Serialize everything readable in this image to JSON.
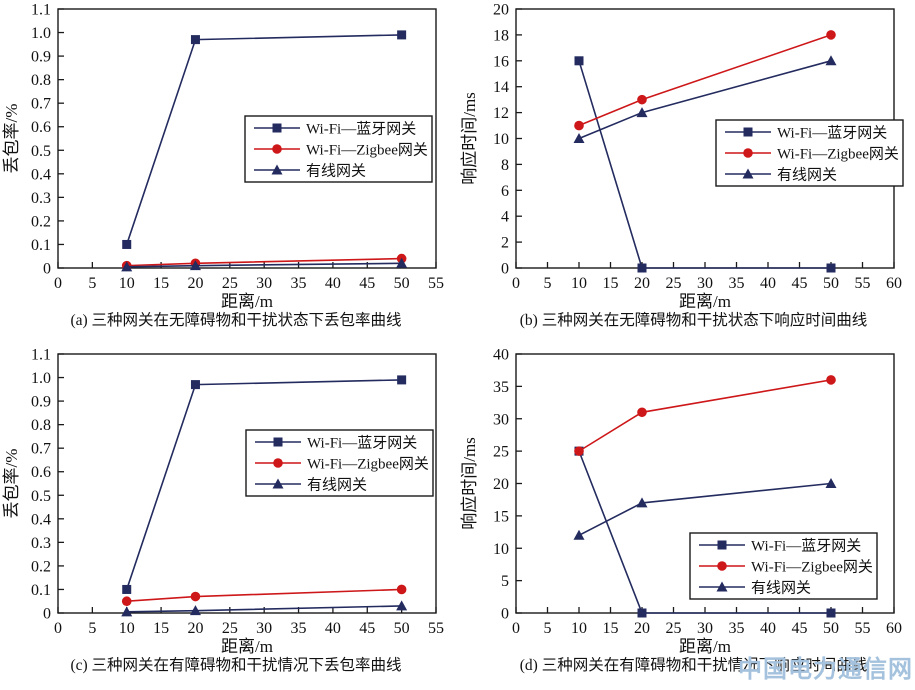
{
  "watermark": {
    "text": "中国电力通信网",
    "color": "#a4c2dd"
  },
  "chart_data": [
    {
      "id": "a",
      "type": "line",
      "caption": "(a) 三种网关在无障碍物和干扰状态下丢包率曲线",
      "xlabel": "距离/m",
      "ylabel": "丢包率/%",
      "xlim": [
        0,
        55
      ],
      "xstep": 5,
      "ylim": [
        0,
        1.1
      ],
      "ystep": 0.1,
      "grid": false,
      "legend_pos": {
        "x": 245,
        "y": 116
      },
      "series": [
        {
          "name": "Wi-Fi—蓝牙网关",
          "marker": "square",
          "color": "#232b5f",
          "points": [
            [
              10,
              0.1
            ],
            [
              20,
              0.97
            ],
            [
              50,
              0.99
            ]
          ]
        },
        {
          "name": "Wi-Fi—Zigbee网关",
          "marker": "circle",
          "color": "#cd1719",
          "points": [
            [
              10,
              0.01
            ],
            [
              20,
              0.02
            ],
            [
              50,
              0.04
            ]
          ]
        },
        {
          "name": "有线网关",
          "marker": "triangle",
          "color": "#232b5f",
          "points": [
            [
              10,
              0.005
            ],
            [
              20,
              0.01
            ],
            [
              50,
              0.02
            ]
          ]
        }
      ]
    },
    {
      "id": "b",
      "type": "line",
      "caption": "(b) 三种网关在无障碍物和干扰状态下响应时间曲线",
      "xlabel": "距离/m",
      "ylabel": "响应时间/ms",
      "xlim": [
        0,
        60
      ],
      "xstep": 5,
      "ylim": [
        0,
        20
      ],
      "ystep": 2,
      "grid": false,
      "legend_pos": {
        "x": 258,
        "y": 120
      },
      "series": [
        {
          "name": "Wi-Fi—蓝牙网关",
          "marker": "square",
          "color": "#232b5f",
          "points": [
            [
              10,
              16
            ],
            [
              20,
              0
            ],
            [
              50,
              0
            ]
          ]
        },
        {
          "name": "Wi-Fi—Zigbee网关",
          "marker": "circle",
          "color": "#cd1719",
          "points": [
            [
              10,
              11
            ],
            [
              20,
              13
            ],
            [
              50,
              18
            ]
          ]
        },
        {
          "name": "有线网关",
          "marker": "triangle",
          "color": "#232b5f",
          "points": [
            [
              10,
              10
            ],
            [
              20,
              12
            ],
            [
              50,
              16
            ]
          ]
        }
      ]
    },
    {
      "id": "c",
      "type": "line",
      "caption": "(c) 三种网关在有障碍物和干扰情况下丢包率曲线",
      "xlabel": "距离/m",
      "ylabel": "丢包率/%",
      "xlim": [
        0,
        55
      ],
      "xstep": 5,
      "ylim": [
        0,
        1.1
      ],
      "ystep": 0.1,
      "grid": false,
      "legend_pos": {
        "x": 246,
        "y": 85
      },
      "series": [
        {
          "name": "Wi-Fi—蓝牙网关",
          "marker": "square",
          "color": "#232b5f",
          "points": [
            [
              10,
              0.1
            ],
            [
              20,
              0.97
            ],
            [
              50,
              0.99
            ]
          ]
        },
        {
          "name": "Wi-Fi—Zigbee网关",
          "marker": "circle",
          "color": "#cd1719",
          "points": [
            [
              10,
              0.05
            ],
            [
              20,
              0.07
            ],
            [
              50,
              0.1
            ]
          ]
        },
        {
          "name": "有线网关",
          "marker": "triangle",
          "color": "#232b5f",
          "points": [
            [
              10,
              0.005
            ],
            [
              20,
              0.01
            ],
            [
              50,
              0.03
            ]
          ]
        }
      ]
    },
    {
      "id": "d",
      "type": "line",
      "caption": "(d) 三种网关在有障碍物和干扰情况下响应时间曲线",
      "xlabel": "距离/m",
      "ylabel": "响应时间/ms",
      "xlim": [
        0,
        60
      ],
      "xstep": 5,
      "ylim": [
        0,
        40
      ],
      "ystep": 5,
      "grid": false,
      "legend_pos": {
        "x": 232,
        "y": 188
      },
      "series": [
        {
          "name": "Wi-Fi—蓝牙网关",
          "marker": "square",
          "color": "#232b5f",
          "points": [
            [
              10,
              25
            ],
            [
              20,
              0
            ],
            [
              50,
              0
            ]
          ]
        },
        {
          "name": "Wi-Fi—Zigbee网关",
          "marker": "circle",
          "color": "#cd1719",
          "points": [
            [
              10,
              25
            ],
            [
              20,
              31
            ],
            [
              50,
              36
            ]
          ]
        },
        {
          "name": "有线网关",
          "marker": "triangle",
          "color": "#232b5f",
          "points": [
            [
              10,
              12
            ],
            [
              20,
              17
            ],
            [
              50,
              20
            ]
          ]
        }
      ]
    }
  ]
}
